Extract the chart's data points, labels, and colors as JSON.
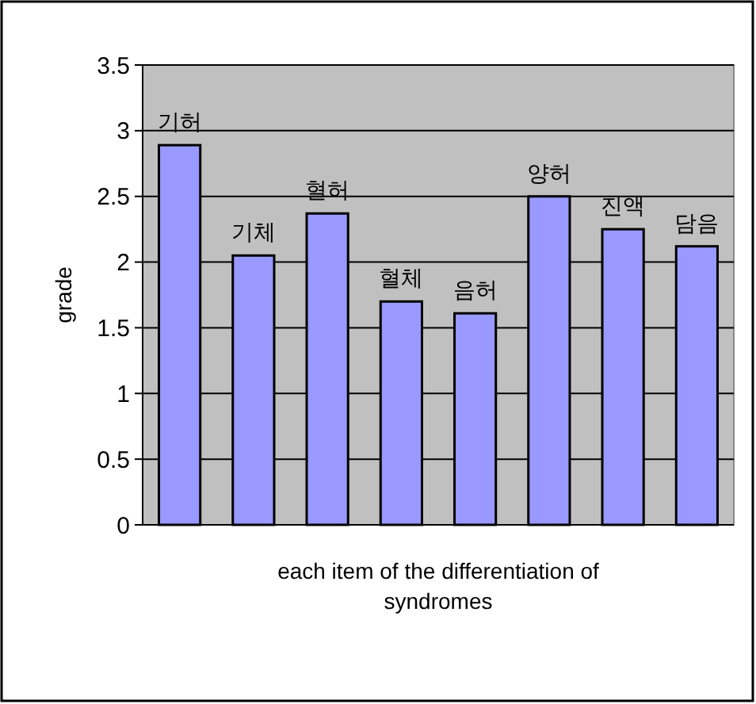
{
  "chart_data": {
    "type": "bar",
    "xlabel": "each item of the differentiation of syndromes",
    "ylabel": "grade",
    "categories": [
      "기허",
      "기체",
      "혈허",
      "혈체",
      "음허",
      "양허",
      "진액",
      "담음"
    ],
    "values": [
      2.89,
      2.05,
      2.37,
      1.7,
      1.61,
      2.5,
      2.25,
      2.12
    ],
    "color": "#9999ff",
    "ylim": [
      0,
      3.5
    ],
    "yticks": [
      0,
      0.5,
      1,
      1.5,
      2,
      2.5,
      3,
      3.5
    ],
    "grid": "y"
  }
}
